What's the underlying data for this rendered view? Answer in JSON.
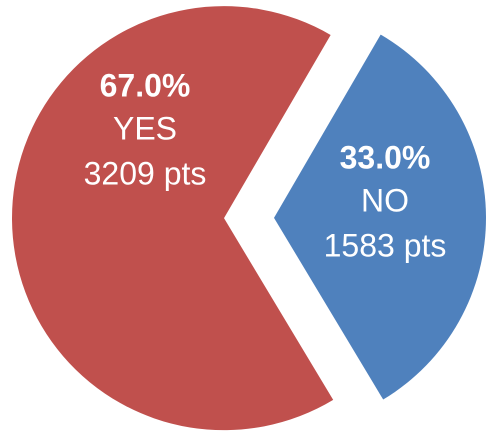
{
  "chart_data": {
    "type": "pie",
    "categories": [
      "YES",
      "NO"
    ],
    "values": [
      67.0,
      33.0
    ],
    "value_labels": [
      "67.0%",
      "33.0%"
    ],
    "points": [
      3209,
      1583
    ],
    "point_labels": [
      "3209 pts",
      "1583 pts"
    ],
    "colors": [
      "#c0504d",
      "#4f81bd"
    ]
  }
}
